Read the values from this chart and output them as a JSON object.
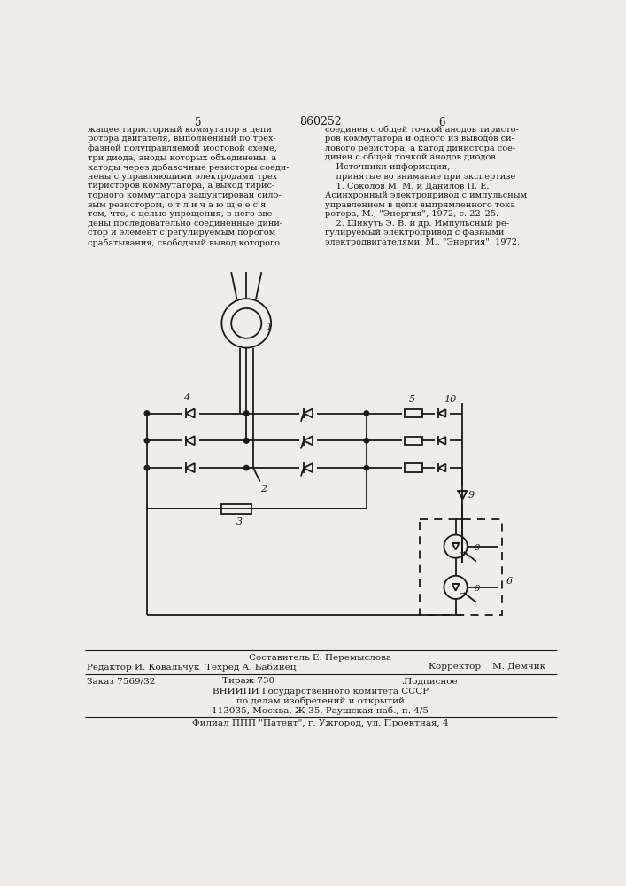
{
  "bg_color": "#f0ede8",
  "line_color": "#1a1a1a",
  "title_number": "860252",
  "page_left": "5",
  "page_right": "6",
  "text_left": "жащее тиристорный коммутатор в цепи\nротора двигателя, выполненный по трех-\nфазной полуправляемой мостовой схеме,\nтри диода, аноды которых объединены, а\nкатоды через добавочные резисторы соеди-\nнены с управляющими электродами трех\nтиристоров коммутатора, а выход тирис-\nторного коммутатора зашунтирован сило-\nвым резистором, о т л и ч а ю щ е е с я\nтем, что, с целью упрощения, в него вве-\nдены последовательно соединенные дини-\nстор и элемент с регулируемым порогом\nсрабатывания, свободный вывод которого",
  "text_right": "соединен с общей точкой анодов тиристо-\nров коммутатора и одного из выводов си-\nлового резистора, а катод динистора сое-\nдинен с общей точкой анодов диодов.\n    Источники информации,\n    принятые во внимание при экспертизе\n    1. Соколов М. М. и Данилов П. Е.\nАсинхронный электропривод с импульсным\nуправлением в цепи выпрямленного тока\nротора, М., \"Энергия\", 1972, с. 22–25.\n    2. Шикуть Э. В. и др. Импульсный ре-\nгулируемый электропривод с фазными\nэлектродвигателями, М., \"Энергия\", 1972,",
  "footer_composer": "Составитель Е. Перемыслова",
  "footer_editor": "Редактор И. Ковальчук  Техред А. Бабинец",
  "footer_corrector": "Корректор    М. Демчик",
  "footer_order": "Заказ 7569/32",
  "footer_tirazh": "Тираж 730",
  "footer_podpisnoe": ".Подписное",
  "footer_vniipи": "ВНИИПИ Государственного комитета СССР",
  "footer_po": "по делам изобретений и открытий",
  "footer_address": "113035, Москва, Ж-35, Раушская наб., п. 4/5",
  "footer_filial": "Филиал ППП \"Патент\", г. Ужгород, ул. Проектная, 4"
}
